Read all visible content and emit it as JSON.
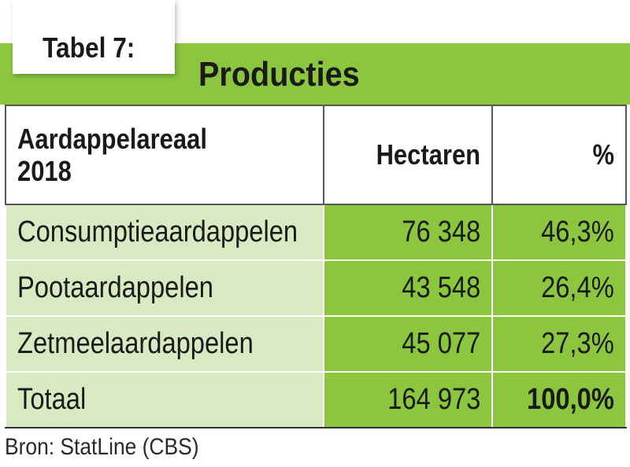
{
  "table_label": "Tabel 7:",
  "title": "Producties",
  "headers": {
    "name_line1": "Aardappelareaal",
    "name_line2": "2018",
    "hectares": "Hectaren",
    "percent": "%"
  },
  "rows": [
    {
      "name": "Consumptieaardappelen",
      "hectares": "76 348",
      "percent": "46,3%"
    },
    {
      "name": "Pootaardappelen",
      "hectares": "43 548",
      "percent": "26,4%"
    },
    {
      "name": "Zetmeelaardappelen",
      "hectares": "45 077",
      "percent": "27,3%"
    },
    {
      "name": "Totaal",
      "hectares": "164 973",
      "percent": "100,0%"
    }
  ],
  "source": "Bron: StatLine (CBS)",
  "colors": {
    "accent_green": "#8cc63f",
    "light_green": "#d7eac1"
  }
}
